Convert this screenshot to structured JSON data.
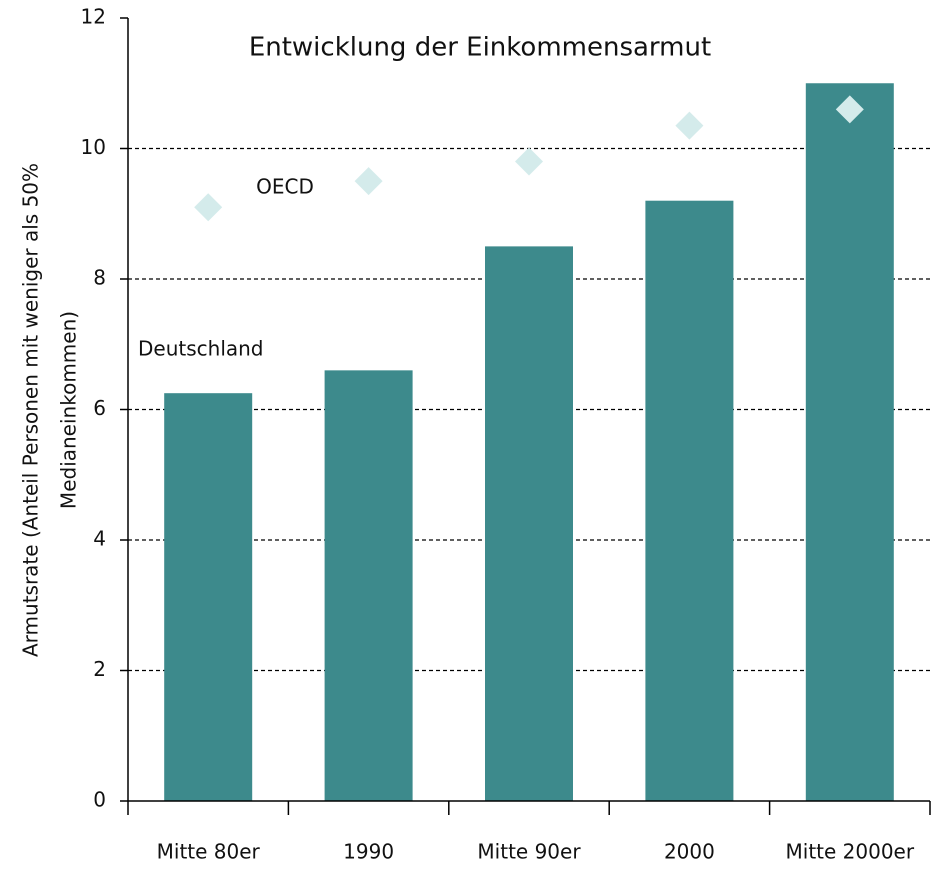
{
  "chart_data": {
    "type": "bar",
    "title": "Entwicklung der Einkommensarmut",
    "ylabel": [
      "Armutsrate (Anteil Personen mit weniger als 50%",
      "Medianeinkommen)"
    ],
    "categories": [
      "Mitte 80er",
      "1990",
      "Mitte 90er",
      "2000",
      "Mitte 2000er"
    ],
    "series": [
      {
        "name": "Deutschland",
        "type": "bar",
        "color": "#3d8a8c",
        "values": [
          6.25,
          6.6,
          8.5,
          9.2,
          11.0
        ]
      },
      {
        "name": "OECD",
        "type": "scatter",
        "color": "#d4ebeb",
        "values": [
          9.1,
          9.5,
          9.8,
          10.35,
          10.6
        ]
      }
    ],
    "ylim": [
      0,
      12
    ],
    "yticks": [
      0,
      2,
      4,
      6,
      8,
      10,
      12
    ],
    "grid": true
  }
}
